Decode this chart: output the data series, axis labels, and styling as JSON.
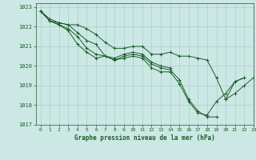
{
  "title": "Graphe pression niveau de la mer (hPa)",
  "xlim": [
    -0.5,
    23
  ],
  "ylim": [
    1017,
    1023.2
  ],
  "yticks": [
    1017,
    1018,
    1019,
    1020,
    1021,
    1022,
    1023
  ],
  "xticks": [
    0,
    1,
    2,
    3,
    4,
    5,
    6,
    7,
    8,
    9,
    10,
    11,
    12,
    13,
    14,
    15,
    16,
    17,
    18,
    19,
    20,
    21,
    22,
    23
  ],
  "bg_color": "#cce8e4",
  "grid_color": "#aacccc",
  "line_color": "#1a5c28",
  "lines": [
    {
      "x": [
        0,
        1,
        2,
        3,
        4,
        5,
        6,
        7,
        8,
        9,
        10,
        11,
        12,
        13,
        14,
        15,
        16,
        17,
        18,
        19,
        20,
        21,
        22
      ],
      "y": [
        1022.8,
        1022.3,
        1022.1,
        1021.8,
        1021.1,
        1020.7,
        1020.4,
        1020.5,
        1020.3,
        1020.4,
        1020.5,
        1020.4,
        1019.9,
        1019.7,
        1019.7,
        1019.1,
        1018.2,
        1017.6,
        1017.5,
        1018.2,
        1018.6,
        1019.2,
        1019.4
      ]
    },
    {
      "x": [
        0,
        1,
        2,
        3,
        4,
        5,
        6,
        7,
        8,
        9,
        10,
        11,
        12,
        13,
        14,
        15,
        16,
        17,
        18,
        19
      ],
      "y": [
        1022.8,
        1022.3,
        1022.1,
        1021.9,
        1021.5,
        1020.9,
        1020.6,
        1020.5,
        1020.3,
        1020.5,
        1020.6,
        1020.5,
        1020.1,
        1019.9,
        1019.8,
        1019.3,
        1018.3,
        1017.7,
        1017.4,
        1017.4
      ]
    },
    {
      "x": [
        0,
        1,
        2,
        3,
        4,
        5,
        6,
        7,
        8,
        9,
        10,
        11,
        12,
        13,
        14
      ],
      "y": [
        1022.8,
        1022.3,
        1022.2,
        1022.1,
        1021.7,
        1021.3,
        1021.1,
        1020.5,
        1020.4,
        1020.6,
        1020.7,
        1020.6,
        1020.2,
        1020.0,
        1019.9
      ]
    },
    {
      "x": [
        0,
        1,
        2,
        3,
        4,
        5,
        6,
        7,
        8,
        9,
        10,
        11,
        12,
        13,
        14,
        15,
        16,
        17,
        18,
        19,
        20,
        21,
        22
      ],
      "y": [
        1022.8,
        1022.4,
        1022.2,
        1022.1,
        1022.1,
        1021.9,
        1021.6,
        1021.2,
        1020.9,
        1020.9,
        1021.0,
        1021.0,
        1020.6,
        1020.6,
        1020.7,
        1020.5,
        1020.5,
        1020.4,
        1020.3,
        1019.4,
        1018.3,
        1019.2,
        1019.4
      ]
    },
    {
      "x": [
        20,
        21,
        22,
        23
      ],
      "y": [
        1018.3,
        1018.6,
        1019.0,
        1019.4
      ]
    }
  ]
}
